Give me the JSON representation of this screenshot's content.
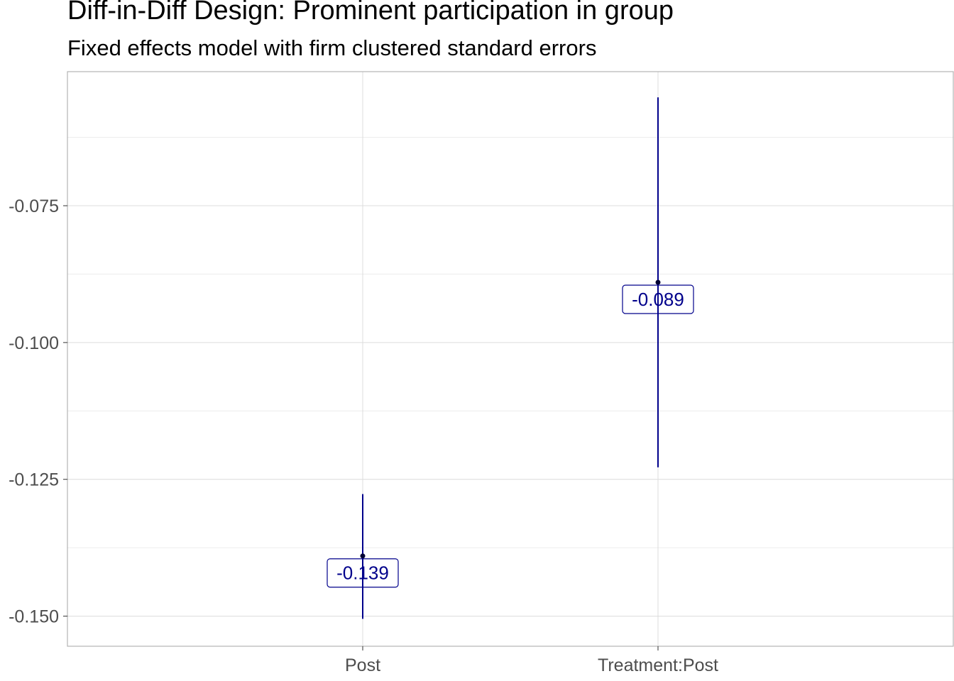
{
  "chart_data": {
    "type": "errorbar",
    "title": "Diff-in-Diff Design: Prominent participation in group",
    "subtitle": "Fixed effects model with firm clustered standard errors",
    "xlabel": "",
    "ylabel": "",
    "categories": [
      "Post",
      "Treatment:Post"
    ],
    "points": [
      {
        "category": "Post",
        "estimate": -0.139,
        "lower": -0.1505,
        "upper": -0.1277,
        "label": "-0.139"
      },
      {
        "category": "Treatment:Post",
        "estimate": -0.089,
        "lower": -0.1228,
        "upper": -0.0552,
        "label": "-0.089"
      }
    ],
    "ylim": [
      -0.1555,
      -0.0505
    ],
    "y_ticks": [
      -0.15,
      -0.125,
      -0.1,
      -0.075
    ],
    "y_tick_labels": [
      "-0.150",
      "-0.125",
      "-0.100",
      "-0.075"
    ],
    "grid": true,
    "legend": "none"
  },
  "colors": {
    "series": "#00008b",
    "grid": "#dcdcdc",
    "panel_border": "#b3b3b3",
    "text": "#4d4d4d"
  }
}
